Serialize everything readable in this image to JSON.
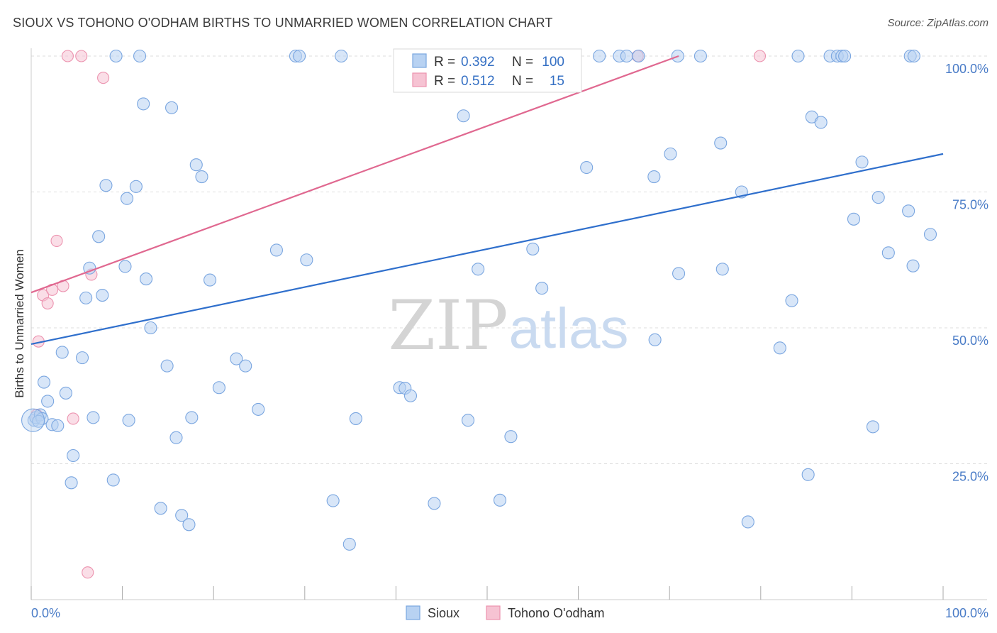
{
  "title": "SIOUX VS TOHONO O'ODHAM BIRTHS TO UNMARRIED WOMEN CORRELATION CHART",
  "source": "Source: ZipAtlas.com",
  "watermark": {
    "zip": "ZIP",
    "atlas": "atlas"
  },
  "legend": {
    "r_label": "R =",
    "n_label": "N =",
    "rows": [
      {
        "series": "Sioux",
        "r": "0.392",
        "n": "100"
      },
      {
        "series": "Tohono O'odham",
        "r": "0.512",
        "n": "15"
      }
    ]
  },
  "colors": {
    "sioux_fill": "#b8d2f2",
    "sioux_stroke": "#7aa6e0",
    "sioux_line": "#2f6fcc",
    "tohono_fill": "#f6c3d3",
    "tohono_stroke": "#ec93af",
    "tohono_line": "#e06890",
    "grid": "#dddddd",
    "tick_text": "#4a7cc7"
  },
  "chart_data": {
    "type": "scatter",
    "xlabel": "",
    "ylabel": "Births to Unmarried Women",
    "xlim": [
      0,
      100
    ],
    "ylim": [
      0,
      100
    ],
    "x_tick_labels": [
      "0.0%",
      "100.0%"
    ],
    "y_ticks": [
      25,
      50,
      75,
      100
    ],
    "y_tick_labels": [
      "25.0%",
      "50.0%",
      "75.0%",
      "100.0%"
    ],
    "grid": true,
    "legend_position": "top-center",
    "bottom_legend": [
      "Sioux",
      "Tohono O'odham"
    ],
    "series": [
      {
        "name": "Sioux",
        "trend": [
          [
            0,
            47.0
          ],
          [
            100,
            82.0
          ]
        ],
        "points": [
          [
            0.3,
            33.0
          ],
          [
            1.4,
            40.0
          ],
          [
            1.8,
            36.5
          ],
          [
            2.3,
            32.2
          ],
          [
            2.9,
            32.0
          ],
          [
            3.4,
            45.5
          ],
          [
            3.8,
            38.0
          ],
          [
            4.6,
            26.5
          ],
          [
            4.4,
            21.5
          ],
          [
            5.6,
            44.5
          ],
          [
            6.0,
            55.5
          ],
          [
            6.4,
            61.0
          ],
          [
            6.8,
            33.5
          ],
          [
            7.4,
            66.8
          ],
          [
            7.8,
            56.0
          ],
          [
            8.2,
            76.2
          ],
          [
            9.0,
            22.0
          ],
          [
            9.3,
            100.0
          ],
          [
            10.3,
            61.3
          ],
          [
            10.5,
            73.8
          ],
          [
            10.7,
            33.0
          ],
          [
            11.5,
            76.0
          ],
          [
            11.9,
            100.0
          ],
          [
            12.3,
            91.2
          ],
          [
            12.6,
            59.0
          ],
          [
            13.1,
            50.0
          ],
          [
            14.2,
            16.8
          ],
          [
            14.9,
            43.0
          ],
          [
            15.4,
            90.5
          ],
          [
            15.9,
            29.8
          ],
          [
            16.5,
            15.5
          ],
          [
            17.3,
            13.8
          ],
          [
            17.6,
            33.5
          ],
          [
            18.1,
            80.0
          ],
          [
            18.7,
            77.8
          ],
          [
            19.6,
            58.8
          ],
          [
            20.6,
            39.0
          ],
          [
            22.5,
            44.3
          ],
          [
            23.5,
            43.0
          ],
          [
            24.9,
            35.0
          ],
          [
            26.9,
            64.3
          ],
          [
            29.0,
            100.0
          ],
          [
            29.4,
            100.0
          ],
          [
            30.2,
            62.5
          ],
          [
            33.1,
            18.2
          ],
          [
            34.0,
            100.0
          ],
          [
            34.9,
            10.2
          ],
          [
            35.6,
            33.3
          ],
          [
            40.4,
            39.0
          ],
          [
            41.0,
            38.9
          ],
          [
            41.6,
            37.5
          ],
          [
            43.2,
            100.0
          ],
          [
            44.2,
            17.7
          ],
          [
            47.4,
            89.0
          ],
          [
            47.9,
            33.0
          ],
          [
            49.0,
            60.8
          ],
          [
            51.4,
            18.3
          ],
          [
            52.6,
            30.0
          ],
          [
            55.0,
            64.5
          ],
          [
            56.0,
            57.3
          ],
          [
            59.2,
            100.0
          ],
          [
            60.9,
            79.5
          ],
          [
            62.3,
            100.0
          ],
          [
            64.5,
            100.0
          ],
          [
            65.3,
            100.0
          ],
          [
            66.6,
            100.0
          ],
          [
            68.3,
            77.8
          ],
          [
            68.4,
            47.8
          ],
          [
            70.1,
            82.0
          ],
          [
            70.9,
            100.0
          ],
          [
            71.0,
            60.0
          ],
          [
            73.4,
            100.0
          ],
          [
            75.6,
            84.0
          ],
          [
            75.8,
            60.8
          ],
          [
            77.9,
            75.0
          ],
          [
            78.6,
            14.3
          ],
          [
            82.1,
            46.3
          ],
          [
            83.4,
            55.0
          ],
          [
            84.1,
            100.0
          ],
          [
            85.2,
            23.0
          ],
          [
            85.6,
            88.8
          ],
          [
            86.6,
            87.8
          ],
          [
            87.6,
            100.0
          ],
          [
            88.4,
            100.0
          ],
          [
            88.9,
            100.0
          ],
          [
            89.2,
            100.0
          ],
          [
            90.2,
            70.0
          ],
          [
            91.1,
            80.5
          ],
          [
            92.3,
            31.8
          ],
          [
            92.9,
            74.0
          ],
          [
            94.0,
            63.8
          ],
          [
            96.4,
            100.0
          ],
          [
            96.8,
            100.0
          ],
          [
            96.2,
            71.5
          ],
          [
            96.7,
            61.4
          ],
          [
            98.6,
            67.2
          ],
          [
            0.5,
            33.5
          ],
          [
            1.0,
            34.0
          ],
          [
            1.2,
            33.3
          ],
          [
            0.8,
            32.8
          ]
        ]
      },
      {
        "name": "Tohono O'odham",
        "trend": [
          [
            0,
            56.5
          ],
          [
            71,
            100.0
          ]
        ],
        "points": [
          [
            0.8,
            47.5
          ],
          [
            0.6,
            34.0
          ],
          [
            1.3,
            56.0
          ],
          [
            1.8,
            54.5
          ],
          [
            2.3,
            57.0
          ],
          [
            2.8,
            66.0
          ],
          [
            3.5,
            57.7
          ],
          [
            4.0,
            100.0
          ],
          [
            4.6,
            33.3
          ],
          [
            5.5,
            100.0
          ],
          [
            6.2,
            5.0
          ],
          [
            6.6,
            59.8
          ],
          [
            7.9,
            96.0
          ],
          [
            66.5,
            100.0
          ],
          [
            79.9,
            100.0
          ]
        ]
      }
    ]
  }
}
